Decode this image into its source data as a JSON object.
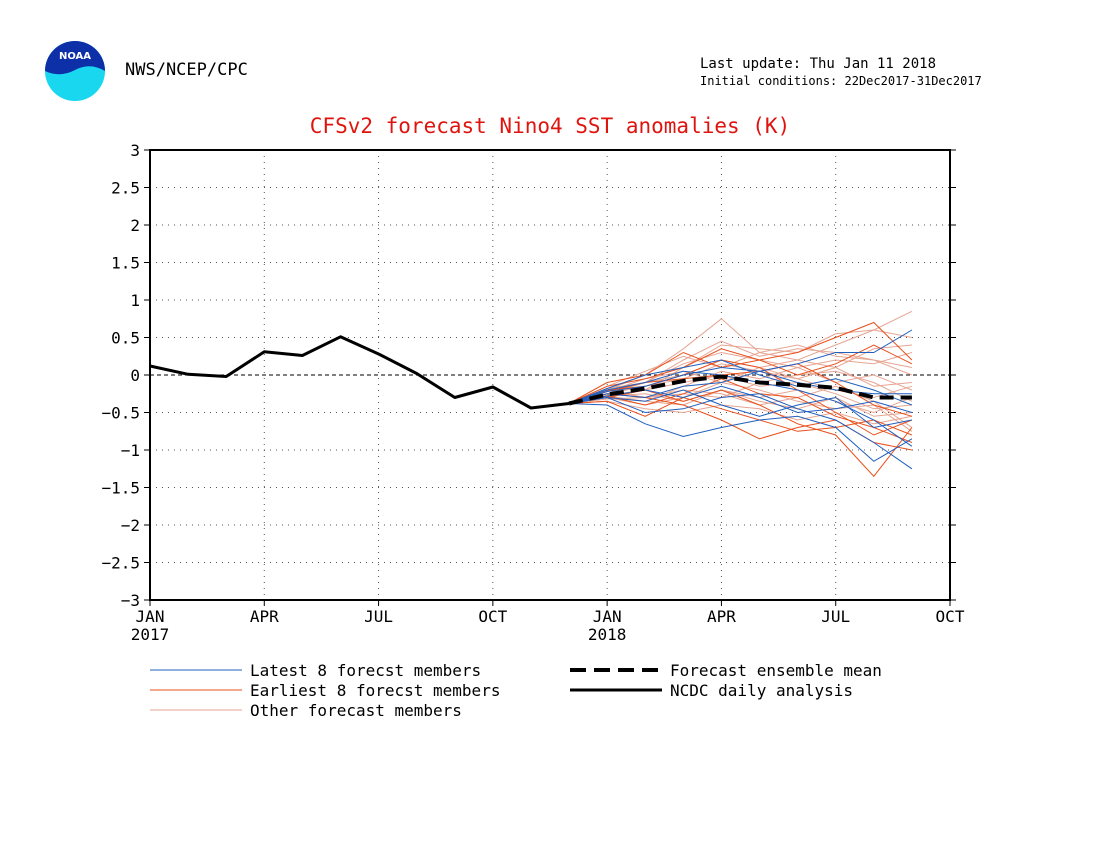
{
  "header": {
    "organization": "NWS/NCEP/CPC",
    "last_update": "Last update: Thu Jan 11 2018",
    "initial_conditions": "Initial conditions: 22Dec2017-31Dec2017",
    "logo_text": "NOAA"
  },
  "chart_data": {
    "type": "line",
    "title": "CFSv2 forecast Nino4 SST anomalies (K)",
    "xlabel": "",
    "ylabel": "",
    "ylim": [
      -3,
      3
    ],
    "yticks": [
      3,
      2.5,
      2,
      1.5,
      1,
      0.5,
      0,
      -0.5,
      -1,
      -1.5,
      -2,
      -2.5,
      -3
    ],
    "ytick_labels": [
      "3",
      "2.5",
      "2",
      "1.5",
      "1",
      "0.5",
      "0",
      "−0.5",
      "−1",
      "−1.5",
      "−2",
      "−2.5",
      "−3"
    ],
    "xlim": [
      "2017-01",
      "2018-10"
    ],
    "xticks": [
      {
        "date": "2017-01",
        "label": "JAN",
        "year": "2017"
      },
      {
        "date": "2017-04",
        "label": "APR",
        "year": ""
      },
      {
        "date": "2017-07",
        "label": "JUL",
        "year": ""
      },
      {
        "date": "2017-10",
        "label": "OCT",
        "year": ""
      },
      {
        "date": "2018-01",
        "label": "JAN",
        "year": "2018"
      },
      {
        "date": "2018-04",
        "label": "APR",
        "year": ""
      },
      {
        "date": "2018-07",
        "label": "JUL",
        "year": ""
      },
      {
        "date": "2018-10",
        "label": "OCT",
        "year": ""
      }
    ],
    "grid": true,
    "zero_line": true,
    "legend_position": "bottom",
    "colors": {
      "latest": "#1f5fbf",
      "earliest": "#e8501c",
      "other": "#e6a592",
      "mean": "#000000",
      "analysis": "#000000",
      "title": "#e0140f"
    },
    "legend": [
      {
        "key": "latest",
        "label": "Latest 8 forecst members"
      },
      {
        "key": "earliest",
        "label": "Earliest 8 forecst members"
      },
      {
        "key": "other",
        "label": "Other forecast members"
      },
      {
        "key": "mean",
        "label": "Forecast ensemble mean"
      },
      {
        "key": "analysis",
        "label": "NCDC daily analysis"
      }
    ],
    "analysis": {
      "name": "NCDC daily analysis",
      "x": [
        "2017-01",
        "2017-02",
        "2017-03",
        "2017-04",
        "2017-05",
        "2017-06",
        "2017-07",
        "2017-08",
        "2017-09",
        "2017-10",
        "2017-11",
        "2017-12"
      ],
      "y": [
        0.12,
        0.01,
        -0.02,
        0.31,
        0.26,
        0.51,
        0.28,
        0.02,
        -0.3,
        -0.16,
        -0.44,
        -0.38
      ]
    },
    "ensemble_mean": {
      "name": "Forecast ensemble mean",
      "x": [
        "2017-12",
        "2018-01",
        "2018-02",
        "2018-03",
        "2018-04",
        "2018-05",
        "2018-06",
        "2018-07",
        "2018-08",
        "2018-09"
      ],
      "y": [
        -0.38,
        -0.26,
        -0.18,
        -0.08,
        -0.02,
        -0.1,
        -0.13,
        -0.17,
        -0.3,
        -0.3
      ]
    },
    "members_x": [
      "2017-12",
      "2018-01",
      "2018-02",
      "2018-03",
      "2018-04",
      "2018-05",
      "2018-06",
      "2018-07",
      "2018-08",
      "2018-09"
    ],
    "members": {
      "latest": [
        [
          -0.38,
          -0.3,
          -0.5,
          -0.45,
          -0.3,
          -0.25,
          -0.45,
          -0.6,
          -0.9,
          -1.25
        ],
        [
          -0.38,
          -0.25,
          -0.3,
          -0.15,
          -0.1,
          0.05,
          0.15,
          0.3,
          0.3,
          0.6
        ],
        [
          -0.38,
          -0.2,
          -0.1,
          0.05,
          0.0,
          -0.1,
          -0.2,
          -0.35,
          -0.6,
          -0.95
        ],
        [
          -0.38,
          -0.4,
          -0.65,
          -0.82,
          -0.7,
          -0.6,
          -0.55,
          -0.7,
          -1.15,
          -0.85
        ],
        [
          -0.38,
          -0.28,
          -0.2,
          -0.3,
          -0.15,
          -0.3,
          -0.5,
          -0.45,
          -0.35,
          -0.5
        ],
        [
          -0.38,
          -0.22,
          -0.15,
          0.0,
          0.1,
          0.05,
          -0.1,
          -0.2,
          -0.25,
          -0.25
        ],
        [
          -0.38,
          -0.3,
          -0.35,
          -0.2,
          -0.4,
          -0.55,
          -0.4,
          -0.3,
          -0.7,
          -0.6
        ],
        [
          -0.38,
          -0.18,
          0.0,
          0.1,
          0.2,
          0.0,
          -0.15,
          -0.05,
          -0.2,
          -0.4
        ]
      ],
      "earliest": [
        [
          -0.38,
          -0.1,
          0.0,
          0.3,
          0.1,
          0.2,
          0.3,
          0.5,
          0.7,
          0.2
        ],
        [
          -0.38,
          -0.25,
          -0.3,
          -0.4,
          -0.6,
          -0.85,
          -0.7,
          -0.6,
          -0.9,
          -1.0
        ],
        [
          -0.38,
          -0.2,
          -0.15,
          0.0,
          0.2,
          0.1,
          -0.2,
          -0.5,
          -0.8,
          -0.6
        ],
        [
          -0.38,
          -0.35,
          -0.55,
          -0.3,
          -0.45,
          -0.6,
          -0.75,
          -0.7,
          -0.6,
          -0.8
        ],
        [
          -0.38,
          -0.15,
          -0.05,
          0.1,
          0.35,
          0.2,
          0.0,
          0.15,
          0.4,
          0.15
        ],
        [
          -0.38,
          -0.3,
          -0.2,
          -0.35,
          -0.2,
          -0.4,
          -0.65,
          -0.8,
          -1.35,
          -0.7
        ],
        [
          -0.38,
          -0.28,
          -0.4,
          -0.25,
          -0.05,
          -0.25,
          -0.3,
          -0.55,
          -0.7,
          -0.9
        ],
        [
          -0.38,
          -0.22,
          -0.1,
          -0.05,
          0.0,
          0.05,
          0.15,
          -0.1,
          -0.4,
          -0.55
        ]
      ],
      "other": [
        [
          -0.38,
          -0.2,
          0.0,
          0.35,
          0.75,
          0.3,
          0.2,
          0.4,
          0.6,
          0.85
        ],
        [
          -0.38,
          -0.3,
          -0.2,
          0.1,
          0.4,
          0.35,
          0.3,
          0.55,
          0.6,
          0.5
        ],
        [
          -0.38,
          -0.25,
          -0.1,
          0.15,
          0.3,
          0.2,
          0.1,
          0.2,
          0.15,
          0.3
        ],
        [
          -0.38,
          -0.15,
          0.05,
          0.25,
          0.1,
          0.3,
          0.4,
          0.25,
          0.2,
          0.1
        ],
        [
          -0.38,
          -0.3,
          -0.35,
          -0.15,
          0.05,
          -0.05,
          0.1,
          -0.1,
          0.0,
          -0.2
        ],
        [
          -0.38,
          -0.28,
          -0.25,
          -0.35,
          -0.2,
          -0.3,
          -0.2,
          -0.35,
          -0.5,
          -0.3
        ],
        [
          -0.38,
          -0.35,
          -0.45,
          -0.5,
          -0.4,
          -0.45,
          -0.6,
          -0.5,
          -0.65,
          -0.55
        ],
        [
          -0.38,
          -0.2,
          -0.3,
          -0.2,
          -0.25,
          -0.4,
          -0.3,
          -0.15,
          -0.35,
          -0.7
        ],
        [
          -0.38,
          -0.25,
          -0.15,
          -0.05,
          0.15,
          0.05,
          -0.05,
          0.1,
          -0.15,
          -0.1
        ],
        [
          -0.38,
          -0.3,
          -0.4,
          -0.3,
          -0.1,
          -0.2,
          -0.35,
          -0.45,
          -0.4,
          -0.75
        ],
        [
          -0.38,
          -0.22,
          -0.05,
          0.05,
          -0.1,
          0.1,
          0.2,
          0.1,
          0.35,
          0.4
        ],
        [
          -0.38,
          -0.27,
          -0.2,
          -0.1,
          0.0,
          -0.15,
          -0.1,
          -0.25,
          -0.45,
          -0.4
        ],
        [
          -0.38,
          -0.32,
          -0.3,
          -0.25,
          -0.3,
          -0.1,
          0.0,
          0.05,
          -0.1,
          -0.35
        ],
        [
          -0.38,
          -0.18,
          -0.1,
          0.2,
          0.45,
          0.25,
          0.35,
          0.3,
          0.2,
          0.0
        ],
        [
          -0.38,
          -0.28,
          -0.35,
          -0.4,
          -0.2,
          -0.35,
          -0.45,
          -0.3,
          -0.55,
          -0.5
        ],
        [
          -0.38,
          -0.25,
          -0.1,
          0.0,
          0.2,
          0.1,
          -0.05,
          -0.2,
          -0.3,
          -0.15
        ]
      ]
    }
  }
}
